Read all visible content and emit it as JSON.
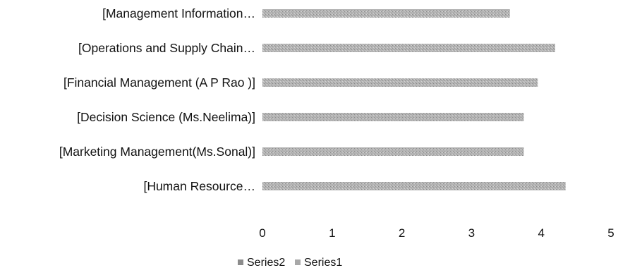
{
  "chart_data": {
    "type": "bar",
    "orientation": "horizontal",
    "stacked": true,
    "categories": [
      "[Management Information…",
      "[Operations and Supply Chain…",
      "[Financial Management (A P Rao )]",
      "[Decision Science (Ms.Neelima)]",
      "[Marketing Management(Ms.Sonal)]",
      "[Human Resource…"
    ],
    "series": [
      {
        "name": "Series1",
        "values": [
          3.55,
          4.2,
          3.95,
          3.75,
          3.75,
          4.35
        ],
        "color": "#a8a8a8"
      },
      {
        "name": "Series2",
        "values": [
          0,
          0,
          0,
          0,
          0,
          0
        ],
        "color": "#8c8c8c"
      }
    ],
    "xlim": [
      0,
      5
    ],
    "xticks": [
      "0",
      "1",
      "2",
      "3",
      "4",
      "5"
    ],
    "grid": false,
    "legend": {
      "position": "bottom",
      "entries": [
        "Series2",
        "Series1"
      ]
    },
    "title": "",
    "xlabel": "",
    "ylabel": ""
  }
}
